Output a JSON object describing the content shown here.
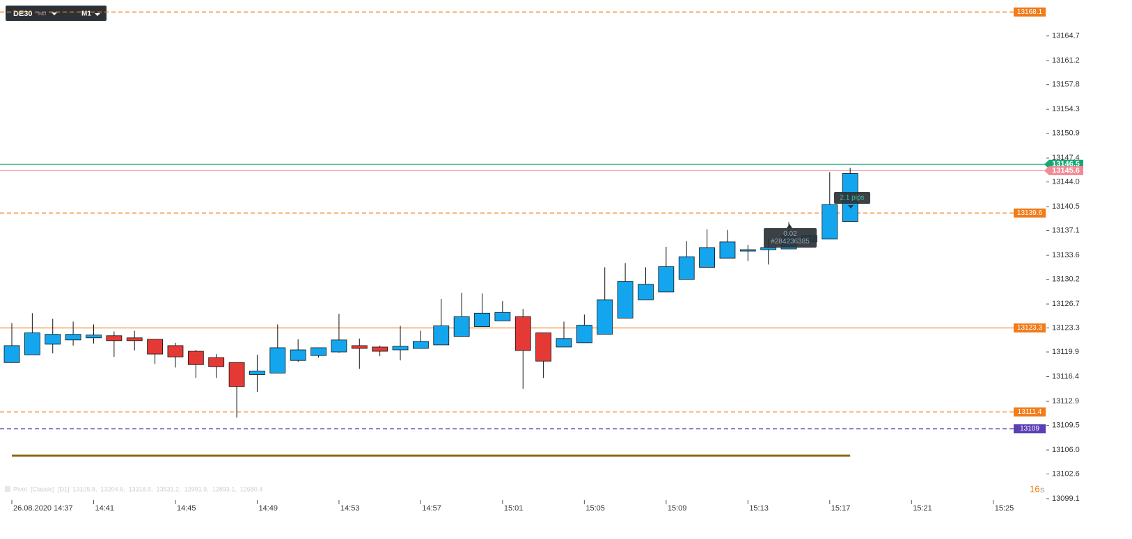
{
  "chart_data": {
    "type": "candlestick",
    "symbol": "DE30",
    "symbol_type": "IND",
    "timeframe": "M1",
    "categories": [
      "26.08.2020  14:37",
      null,
      null,
      null,
      "14:41",
      null,
      null,
      null,
      "14:45",
      null,
      null,
      null,
      "14:49",
      null,
      null,
      null,
      "14:53",
      null,
      null,
      null,
      "14:57",
      null,
      null,
      null,
      "15:01",
      null,
      null,
      null,
      "15:05",
      null,
      null,
      null,
      "15:09",
      null,
      null,
      null,
      "15:13",
      null,
      null,
      null,
      "15:17",
      null,
      null,
      null,
      "15:21",
      null,
      null,
      null,
      "15:25"
    ],
    "open": [
      13118.4,
      13119.5,
      13121.0,
      13121.6,
      13121.9,
      13122.2,
      13121.9,
      13121.7,
      13120.8,
      13120.0,
      13119.1,
      13118.4,
      13116.7,
      13116.9,
      13118.7,
      13119.4,
      13119.9,
      13120.8,
      13120.6,
      13120.2,
      13120.4,
      13120.9,
      13122.1,
      13123.5,
      13124.3,
      13124.9,
      13122.6,
      13120.6,
      13121.2,
      13122.4,
      13124.7,
      13127.3,
      13128.4,
      13130.2,
      13131.9,
      13133.2,
      13134.2,
      13134.4,
      13134.5,
      13135.5,
      13135.9,
      13138.4,
      null,
      null,
      null,
      null,
      null,
      null,
      null
    ],
    "high": [
      13124.0,
      13125.4,
      13124.6,
      13124.2,
      13123.8,
      13122.8,
      13122.9,
      13121.7,
      13121.2,
      13120.2,
      13119.6,
      13118.4,
      13119.5,
      13123.8,
      13121.7,
      13120.5,
      13125.3,
      13121.8,
      13120.8,
      13123.6,
      13122.9,
      13127.4,
      13128.3,
      13128.2,
      13127.1,
      13126.0,
      13122.6,
      13124.2,
      13125.2,
      13131.9,
      13132.5,
      13131.9,
      13134.8,
      13135.6,
      13137.3,
      13137.2,
      13135.1,
      13135.9,
      13138.3,
      13136.5,
      13145.4,
      13146.0,
      null,
      null,
      null,
      null,
      null,
      null,
      null
    ],
    "low": [
      13118.4,
      13119.5,
      13119.7,
      13120.8,
      13121.1,
      13119.2,
      13120.1,
      13118.2,
      13117.7,
      13116.2,
      13116.2,
      13110.6,
      13114.2,
      13116.9,
      13118.5,
      13119.1,
      13119.8,
      13117.5,
      13119.3,
      13118.7,
      13120.4,
      13120.9,
      13122.1,
      13123.5,
      13124.3,
      13114.7,
      13116.2,
      13120.6,
      13121.2,
      13122.4,
      13124.7,
      13127.3,
      13128.4,
      13130.2,
      13131.9,
      13133.2,
      13132.8,
      13132.3,
      13134.5,
      13135.5,
      13135.9,
      13138.4,
      null,
      null,
      null,
      null,
      null,
      null,
      null
    ],
    "close": [
      13120.8,
      13122.6,
      13122.4,
      13122.4,
      13122.3,
      13121.5,
      13121.5,
      13119.6,
      13119.2,
      13118.1,
      13117.8,
      13115.0,
      13117.2,
      13120.5,
      13120.2,
      13120.5,
      13121.6,
      13120.4,
      13120.0,
      13120.7,
      13121.4,
      13123.6,
      13124.9,
      13125.4,
      13125.5,
      13120.1,
      13118.6,
      13121.8,
      13123.7,
      13127.3,
      13129.9,
      13129.5,
      13132.0,
      13133.4,
      13134.7,
      13135.5,
      13134.4,
      13134.7,
      13136.4,
      13136.4,
      13140.8,
      13145.2,
      null,
      null,
      null,
      null,
      null,
      null,
      null
    ],
    "up_color": "#13a6ef",
    "down_color": "#e53935",
    "ylim": [
      13099.1,
      13169.8
    ],
    "yticks": [
      13164.7,
      13161.2,
      13157.8,
      13154.3,
      13150.9,
      13147.4,
      {
        "value": 13144,
        "label": "13144.0"
      },
      13140.5,
      13137.1,
      13133.6,
      13130.2,
      13126.7,
      13123.3,
      13119.9,
      13116.4,
      13112.9,
      13109.5,
      {
        "value": 13106,
        "label": "13106.0"
      },
      13102.6,
      13099.1
    ],
    "levels": [
      {
        "value": 13168.1,
        "color": "#f07c1a",
        "style": "dashed"
      },
      {
        "value": 13139.6,
        "color": "#f07c1a",
        "style": "dashed"
      },
      {
        "value": 13123.3,
        "color": "#f07c1a",
        "style": "solid"
      },
      {
        "value": 13111.4,
        "color": "#f07c1a",
        "style": "dashed"
      },
      {
        "value": 13109.0,
        "color": "#5b3fb5",
        "style": "dashed"
      }
    ],
    "ask": {
      "value": 13146.5,
      "color": "#17a673"
    },
    "bid": {
      "value": 13145.6,
      "color": "#f08a94"
    },
    "position_line": {
      "value": 13105.2,
      "color": "#8a6a14"
    },
    "tooltips": [
      {
        "lines": [
          "2.1  pips"
        ]
      },
      {
        "lines": [
          "0.02",
          "#284236385"
        ]
      }
    ],
    "indicator": "Pivot  [Classic]  [D1]  13105.8,  13204.6,  13318.5,  13531.2,  12991.9,  12893.1,  12680.4",
    "countdown": {
      "value": "16",
      "unit": "s"
    }
  }
}
